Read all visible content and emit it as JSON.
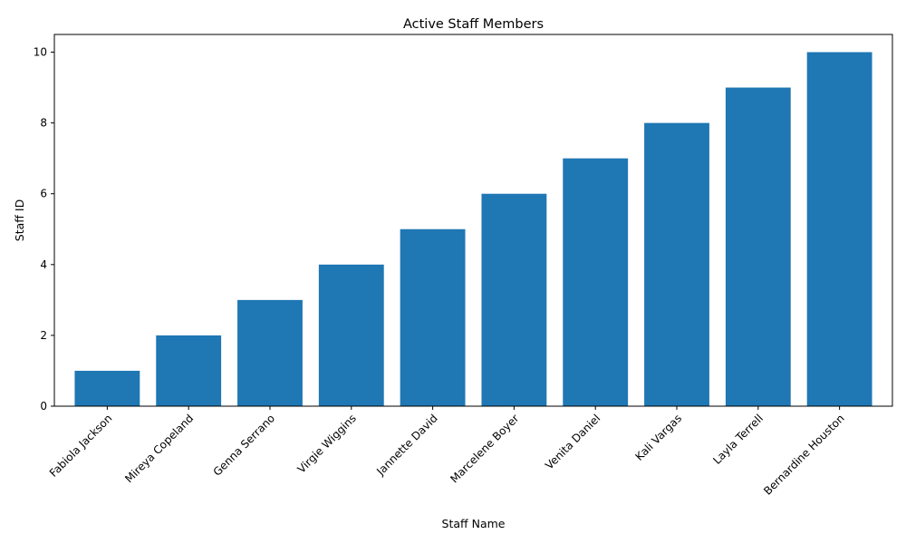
{
  "chart_data": {
    "type": "bar",
    "title": "Active Staff Members",
    "xlabel": "Staff Name",
    "ylabel": "Staff ID",
    "categories": [
      "Fabiola Jackson",
      "Mireya Copeland",
      "Genna Serrano",
      "Virgie Wiggins",
      "Jannette David",
      "Marcelene Boyer",
      "Venita Daniel",
      "Kali Vargas",
      "Layla Terrell",
      "Bernardine Houston"
    ],
    "values": [
      1,
      2,
      3,
      4,
      5,
      6,
      7,
      8,
      9,
      10
    ],
    "ylim": [
      0,
      10.5
    ],
    "yticks": [
      0,
      2,
      4,
      6,
      8,
      10
    ],
    "grid": false,
    "legend": "none",
    "bar_color": "#1f77b4"
  }
}
